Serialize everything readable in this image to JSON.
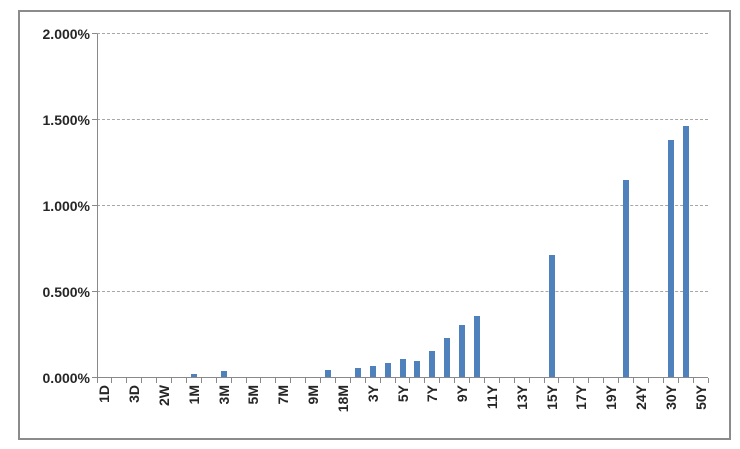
{
  "chart_data": {
    "type": "bar",
    "title": "",
    "xlabel": "",
    "ylabel": "",
    "values_unit": "percent",
    "ylim": [
      0,
      2.0
    ],
    "ytick_values": [
      0,
      0.5,
      1.0,
      1.5,
      2.0
    ],
    "ytick_labels": [
      "0.000%",
      "0.500%",
      "1.000%",
      "1.500%",
      "2.000%"
    ],
    "grid": "horizontal-dashed",
    "legend": "none",
    "bar_color": "#4f81bd",
    "axis_color": "#898989",
    "gridline_color": "#a6a6a6",
    "text_color": "#262626",
    "frame_border_color": "#8b8b8b",
    "x_label_rotation_deg": 90,
    "visible_x_labels": [
      "1D",
      "3D",
      "2W",
      "1M",
      "3M",
      "5M",
      "7M",
      "9M",
      "18M",
      "3Y",
      "5Y",
      "7Y",
      "9Y",
      "11Y",
      "13Y",
      "15Y",
      "17Y",
      "19Y",
      "24Y",
      "30Y",
      "50Y"
    ],
    "categories": [
      "1D",
      "",
      "3D",
      "",
      "2W",
      "",
      "1M",
      "",
      "3M",
      "",
      "5M",
      "",
      "7M",
      "",
      "9M",
      "",
      "18M",
      "",
      "3Y",
      "",
      "5Y",
      "",
      "7Y",
      "",
      "9Y",
      "",
      "11Y",
      "",
      "13Y",
      "",
      "15Y",
      "",
      "17Y",
      "",
      "19Y",
      "",
      "24Y",
      "",
      "30Y",
      "",
      "50Y"
    ],
    "values": [
      0,
      0,
      0,
      0,
      0,
      0,
      0.02,
      0,
      0.04,
      0,
      0,
      0,
      0,
      0,
      0,
      0.045,
      0,
      0.055,
      0.065,
      0.085,
      0.105,
      0.095,
      0.155,
      0.23,
      0.305,
      0.36,
      0,
      0,
      0,
      0,
      0.71,
      0,
      0,
      0,
      0,
      1.15,
      0,
      0,
      1.38,
      1.46,
      0
    ]
  }
}
